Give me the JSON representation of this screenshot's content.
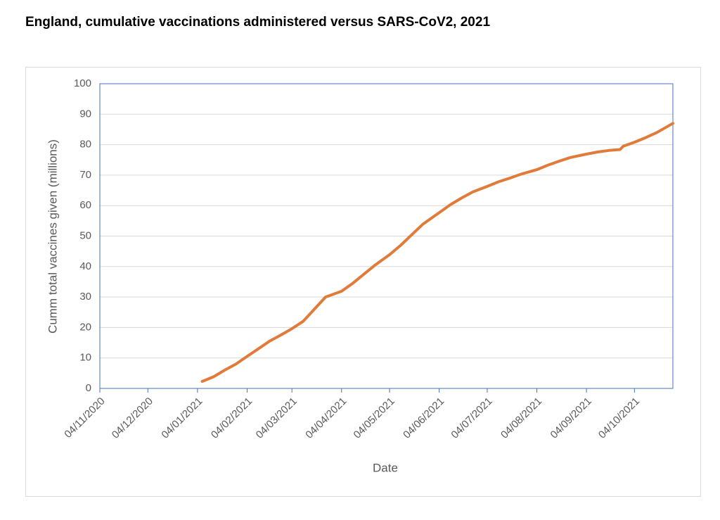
{
  "chart_data": {
    "type": "line",
    "title": "England, cumulative vaccinations administered versus SARS-CoV2, 2021",
    "xlabel": "Date",
    "ylabel": "Cumm total vaccines given (millions)",
    "x": [
      "07/01/2021",
      "14/01/2021",
      "21/01/2021",
      "28/01/2021",
      "04/02/2021",
      "11/02/2021",
      "18/02/2021",
      "25/02/2021",
      "04/03/2021",
      "11/03/2021",
      "18/03/2021",
      "25/03/2021",
      "04/04/2021",
      "11/04/2021",
      "18/04/2021",
      "25/04/2021",
      "04/05/2021",
      "11/05/2021",
      "18/05/2021",
      "25/05/2021",
      "04/06/2021",
      "11/06/2021",
      "18/06/2021",
      "25/06/2021",
      "04/07/2021",
      "11/07/2021",
      "18/07/2021",
      "25/07/2021",
      "04/08/2021",
      "11/08/2021",
      "18/08/2021",
      "25/08/2021",
      "04/09/2021",
      "11/09/2021",
      "18/09/2021",
      "25/09/2021",
      "27/09/2021",
      "04/10/2021",
      "11/10/2021",
      "18/10/2021",
      "28/10/2021"
    ],
    "series": [
      {
        "name": "Cumm total vaccines given",
        "color": "#e07b39",
        "values": [
          2.3,
          3.8,
          6,
          8,
          10.5,
          13,
          15.5,
          17.5,
          19.6,
          22,
          26,
          30,
          31.9,
          34.5,
          37.5,
          40.5,
          43.9,
          47,
          50.5,
          54,
          57.7,
          60.3,
          62.5,
          64.5,
          66.3,
          67.8,
          69,
          70.3,
          71.8,
          73.3,
          74.6,
          75.8,
          76.9,
          77.6,
          78.1,
          78.4,
          79.5,
          80.8,
          82.3,
          84,
          87
        ]
      }
    ],
    "xlim": [
      "04/11/2020",
      "28/10/2021"
    ],
    "xticks": [
      "04/11/2020",
      "04/12/2020",
      "04/01/2021",
      "04/02/2021",
      "04/03/2021",
      "04/04/2021",
      "04/05/2021",
      "04/06/2021",
      "04/07/2021",
      "04/08/2021",
      "04/09/2021",
      "04/10/2021"
    ],
    "ylim": [
      0,
      100
    ],
    "yticks": [
      0,
      10,
      20,
      30,
      40,
      50,
      60,
      70,
      80,
      90,
      100
    ],
    "grid": true
  }
}
